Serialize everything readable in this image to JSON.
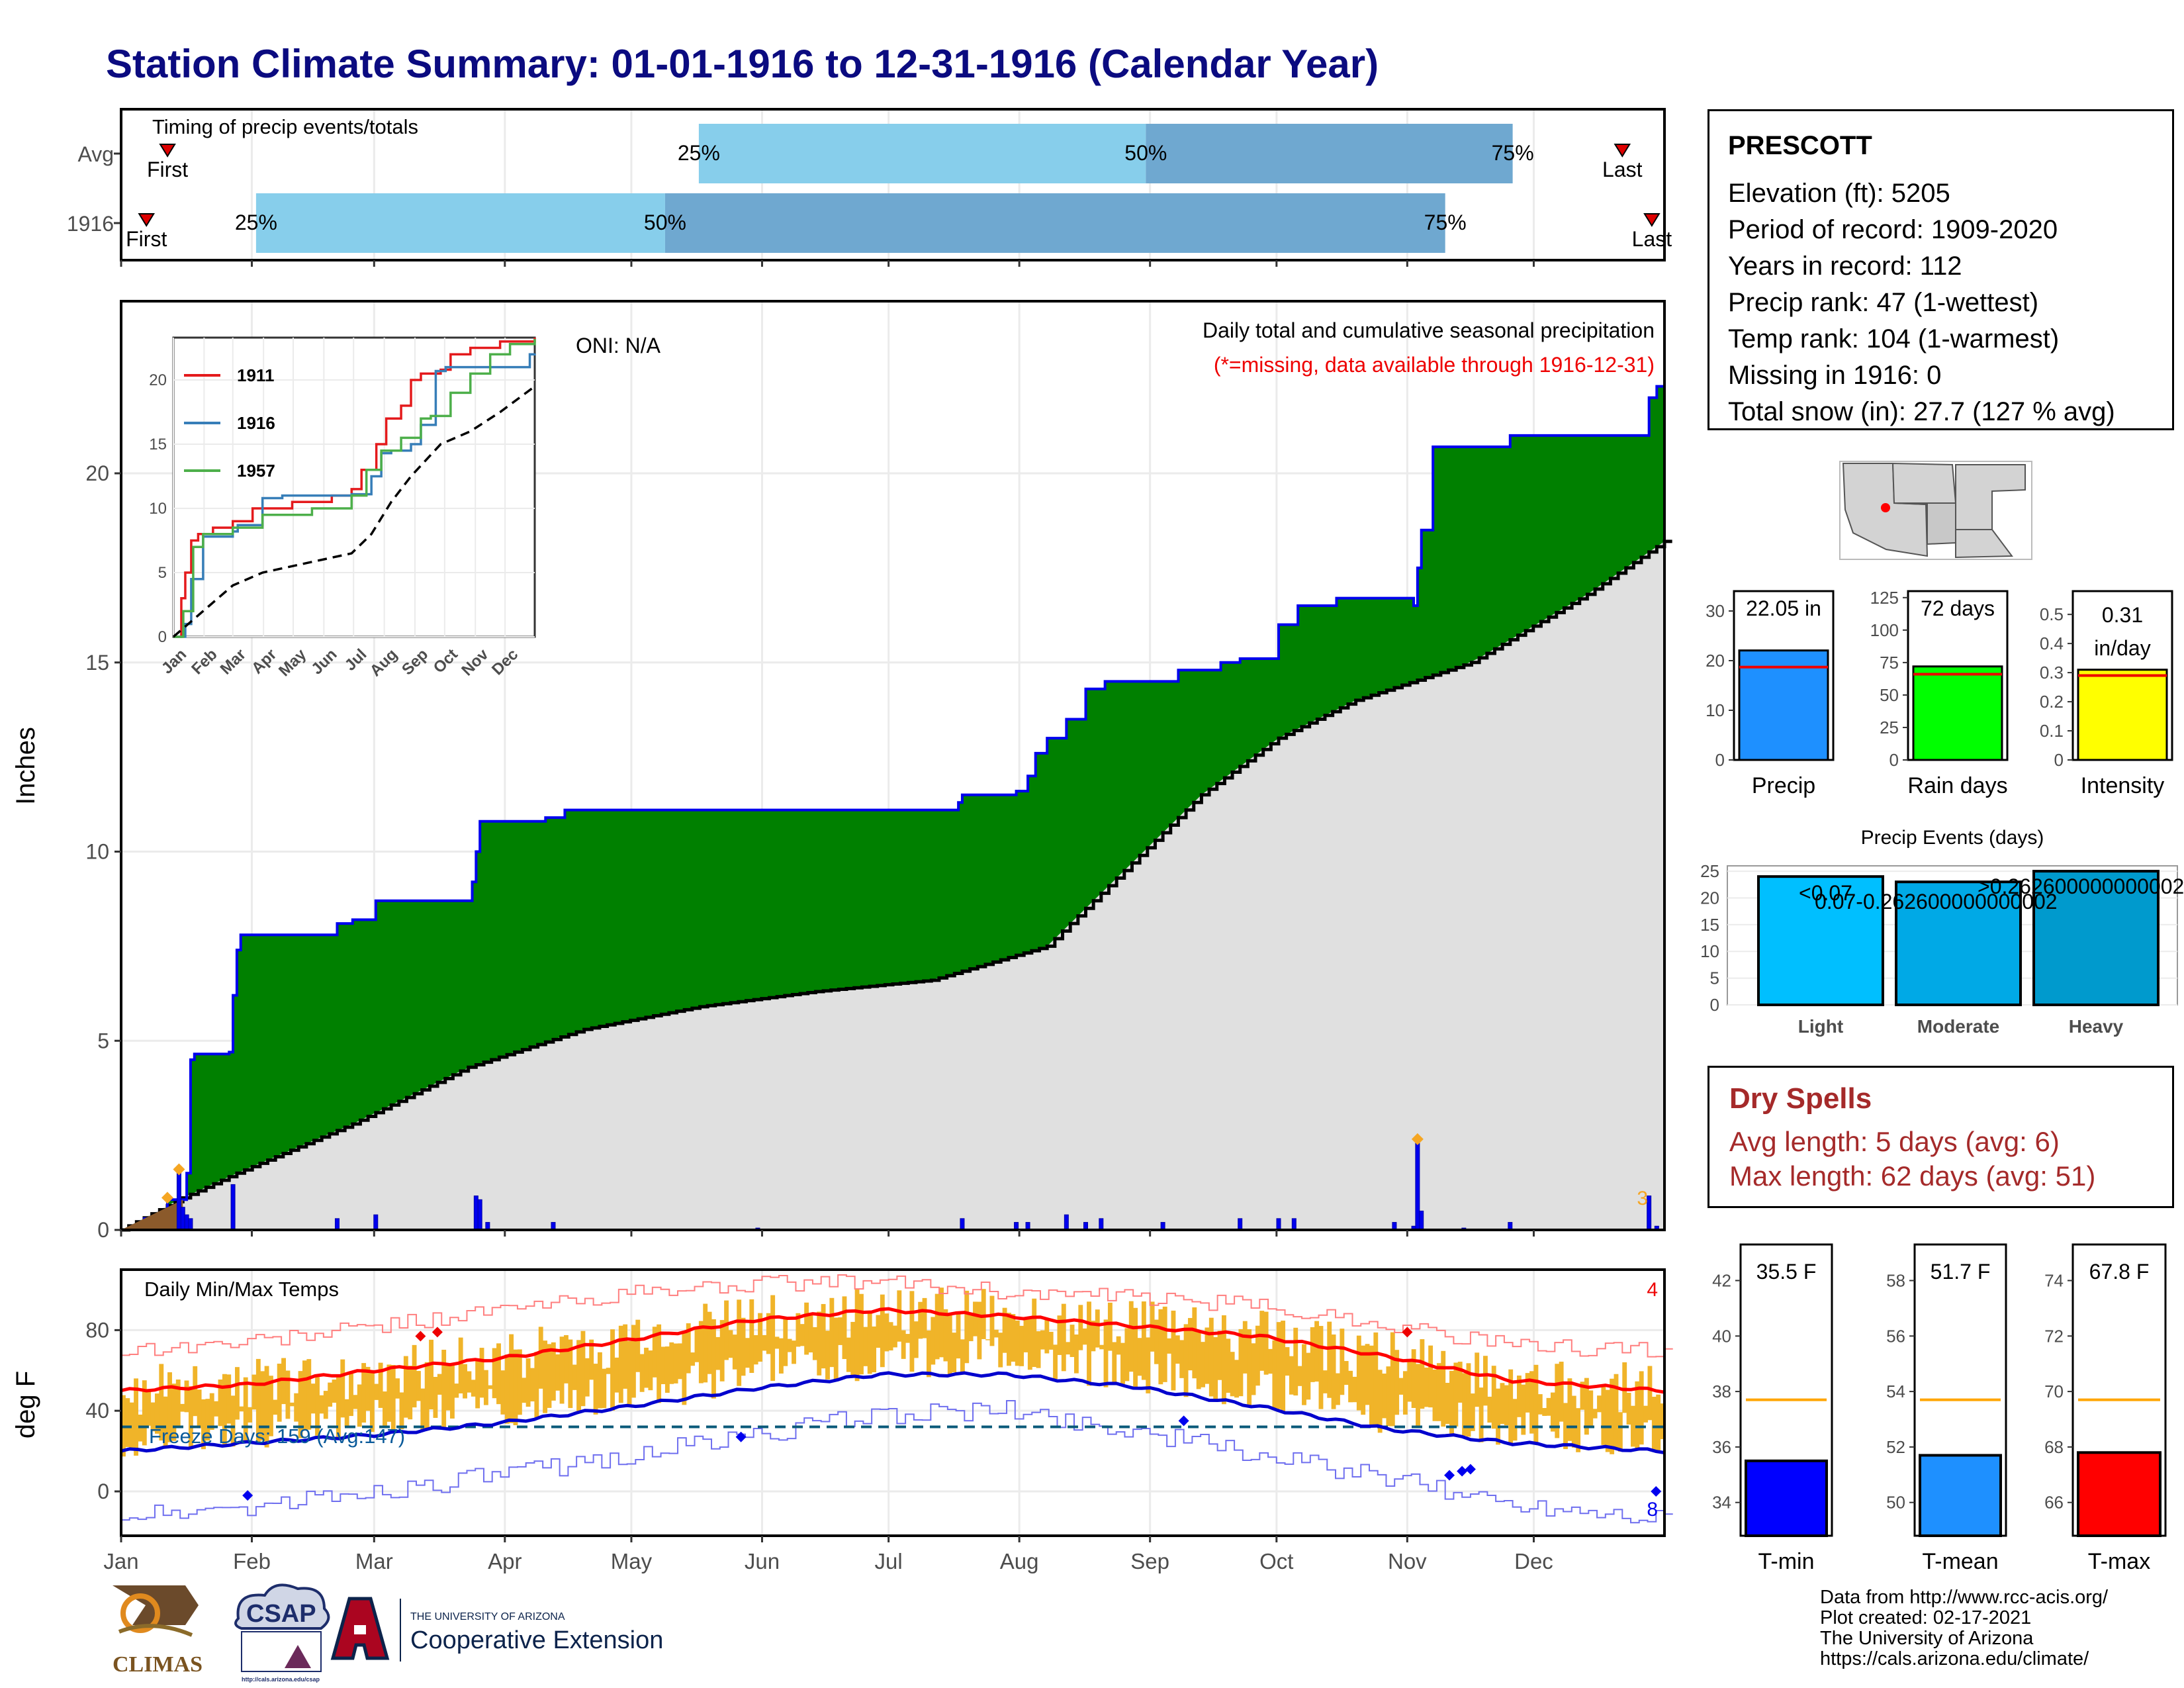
{
  "title": "Station Climate Summary: 01-01-1916 to 12-31-1916 (Calendar Year)",
  "station": {
    "name": "PRESCOTT",
    "rows": [
      "Elevation (ft): 5205",
      "Period of record: 1909-2020",
      "Years in record: 112",
      "Precip rank: 47 (1-wettest)",
      "Temp rank: 104 (1-warmest)",
      "Missing in 1916: 0",
      "Total snow (in): 27.7 (127 % avg)"
    ]
  },
  "dry_spells": {
    "title": "Dry Spells",
    "avg_length": "Avg length: 5 days (avg: 6)",
    "max_length": "Max length: 62 days (avg: 51)"
  },
  "credits": [
    "Data from http://www.rcc-acis.org/",
    "Plot created: 02-17-2021",
    "The University of Arizona",
    "https://cals.arizona.edu/climate/"
  ],
  "logos": {
    "climas": "CLIMAS",
    "csap": "CSAP",
    "csap_url": "http://cals.arizona.edu/csap",
    "uofa_small": "THE UNIVERSITY OF ARIZONA",
    "uofa_big": "Cooperative Extension"
  },
  "colors": {
    "title": "#0b0b80",
    "precip_fill": "#008000",
    "precip_line": "#0000ee",
    "normal_fill": "#e0e0e0",
    "tmax": "#ff0000",
    "tmin": "#0000cd",
    "temp_bar": "#f0b429",
    "q_light": "#87ceeb",
    "q_dark": "#6fa8d0"
  },
  "chart_data": [
    {
      "type": "bar",
      "name": "timing",
      "title": "Timing of precip events/totals",
      "x_domain_days": [
        0,
        366
      ],
      "rows": [
        {
          "label": "Avg",
          "first": 11,
          "q25": 137,
          "q50": 243,
          "q75": 330,
          "last": 356
        },
        {
          "label": "1916",
          "first": 6,
          "q25": 32,
          "q50": 129,
          "q75": 314,
          "last": 363
        }
      ],
      "marker_labels": {
        "first": "First",
        "last": "Last",
        "q25": "25%",
        "q50": "50%",
        "q75": "75%"
      }
    },
    {
      "type": "area",
      "name": "cumulative_precip",
      "title": "Daily total and cumulative seasonal precipitation",
      "subtitle": "(*=missing, data available through 1916-12-31)",
      "oni": "ONI: N/A",
      "ylabel": "Inches",
      "ylim": [
        0,
        24
      ],
      "yticks": [
        0,
        5,
        10,
        15,
        20
      ],
      "month_labels": [
        "Jan",
        "Feb",
        "Mar",
        "Apr",
        "May",
        "Jun",
        "Jul",
        "Aug",
        "Sep",
        "Oct",
        "Nov",
        "Dec"
      ],
      "corner_label": "3",
      "cumulative_1916": [
        [
          0,
          0
        ],
        [
          6,
          0.3
        ],
        [
          12,
          0.8
        ],
        [
          17,
          1.5
        ],
        [
          18,
          4.5
        ],
        [
          19,
          4.65
        ],
        [
          28,
          4.7
        ],
        [
          29,
          6.2
        ],
        [
          30,
          7.4
        ],
        [
          31,
          7.8
        ],
        [
          55,
          7.8
        ],
        [
          56,
          8.1
        ],
        [
          60,
          8.2
        ],
        [
          66,
          8.7
        ],
        [
          90,
          8.7
        ],
        [
          91,
          9.2
        ],
        [
          92,
          10.0
        ],
        [
          93,
          10.8
        ],
        [
          110,
          10.9
        ],
        [
          115,
          11.1
        ],
        [
          165,
          11.1
        ],
        [
          215,
          11.1
        ],
        [
          217,
          11.3
        ],
        [
          218,
          11.5
        ],
        [
          232,
          11.6
        ],
        [
          235,
          12.0
        ],
        [
          237,
          12.6
        ],
        [
          240,
          13.0
        ],
        [
          245,
          13.5
        ],
        [
          250,
          14.3
        ],
        [
          255,
          14.5
        ],
        [
          270,
          14.5
        ],
        [
          274,
          14.8
        ],
        [
          285,
          15.0
        ],
        [
          290,
          15.1
        ],
        [
          300,
          16.0
        ],
        [
          305,
          16.5
        ],
        [
          315,
          16.7
        ],
        [
          335,
          16.5
        ],
        [
          336,
          17.5
        ],
        [
          337,
          18.5
        ],
        [
          340,
          20.7
        ],
        [
          360,
          21.0
        ],
        [
          395,
          21.0
        ],
        [
          396,
          22.0
        ],
        [
          398,
          22.3
        ],
        [
          400,
          22.05
        ]
      ],
      "normal": [
        [
          0,
          0
        ],
        [
          15,
          0.8
        ],
        [
          30,
          1.5
        ],
        [
          60,
          2.8
        ],
        [
          90,
          4.3
        ],
        [
          120,
          5.3
        ],
        [
          150,
          5.9
        ],
        [
          180,
          6.3
        ],
        [
          210,
          6.6
        ],
        [
          240,
          7.5
        ],
        [
          260,
          9.5
        ],
        [
          280,
          11.5
        ],
        [
          300,
          13.0
        ],
        [
          320,
          14.0
        ],
        [
          350,
          15.0
        ],
        [
          380,
          16.8
        ],
        [
          400,
          18.2
        ]
      ],
      "daily_bars": [
        [
          15,
          1.5
        ],
        [
          16,
          0.6
        ],
        [
          17,
          0.4
        ],
        [
          18,
          0.3
        ],
        [
          29,
          1.2
        ],
        [
          56,
          0.3
        ],
        [
          66,
          0.4
        ],
        [
          92,
          0.9
        ],
        [
          93,
          0.8
        ],
        [
          95,
          0.2
        ],
        [
          112,
          0.2
        ],
        [
          165,
          0.05
        ],
        [
          218,
          0.3
        ],
        [
          232,
          0.2
        ],
        [
          235,
          0.2
        ],
        [
          245,
          0.4
        ],
        [
          250,
          0.2
        ],
        [
          254,
          0.3
        ],
        [
          270,
          0.2
        ],
        [
          290,
          0.3
        ],
        [
          300,
          0.3
        ],
        [
          304,
          0.3
        ],
        [
          330,
          0.2
        ],
        [
          335,
          0.1
        ],
        [
          336,
          2.3
        ],
        [
          337,
          0.5
        ],
        [
          348,
          0.05
        ],
        [
          360,
          0.2
        ],
        [
          396,
          0.9
        ],
        [
          398,
          0.1
        ]
      ]
    },
    {
      "type": "line",
      "name": "inset_cumulative",
      "series": [
        {
          "name": "1911"
        },
        {
          "name": "1916"
        },
        {
          "name": "1957"
        }
      ],
      "ylim": [
        0,
        23
      ],
      "yticks": [
        0,
        5,
        10,
        15,
        20
      ],
      "month_labels": [
        "Jan",
        "Feb",
        "Mar",
        "Apr",
        "May",
        "Jun",
        "Jul",
        "Aug",
        "Sep",
        "Oct",
        "Nov",
        "Dec"
      ]
    },
    {
      "type": "bar",
      "name": "totals",
      "panels": [
        {
          "label": "Precip",
          "value_text": "22.05 in",
          "value": 22.05,
          "avg": 18.7,
          "ylim": [
            0,
            34
          ],
          "yticks": [
            0,
            10,
            20,
            30
          ],
          "color": "#1e90ff"
        },
        {
          "label": "Rain days",
          "value_text": "72 days",
          "value": 72,
          "avg": 66,
          "ylim": [
            0,
            130
          ],
          "yticks": [
            0,
            25,
            50,
            75,
            100,
            125
          ],
          "color": "#00ff00"
        },
        {
          "label": "Intensity",
          "value_text": "0.31",
          "value_text2": "in/day",
          "value": 0.31,
          "avg": 0.29,
          "ylim": [
            0,
            0.58
          ],
          "yticks": [
            0.0,
            0.1,
            0.2,
            0.3,
            0.4,
            0.5
          ],
          "color": "#ffff00"
        }
      ]
    },
    {
      "type": "bar",
      "name": "precip_events",
      "title": "Precip Events (days)",
      "categories": [
        "Light",
        "Moderate",
        "Heavy"
      ],
      "values": [
        24,
        23,
        25
      ],
      "bar_labels": [
        "<0.07",
        "0.07-0.262600000000002",
        ">0.262600000000002"
      ],
      "ylim": [
        0,
        26
      ],
      "yticks": [
        0,
        5,
        10,
        15,
        20,
        25
      ]
    },
    {
      "type": "line",
      "name": "daily_temps",
      "title": "Daily Min/Max Temps",
      "ylabel": "deg F",
      "ylim": [
        -22,
        110
      ],
      "yticks": [
        0,
        40,
        80
      ],
      "freeze_label": "Freeze Days: 159 (Avg:147)",
      "freeze_line": 32,
      "corner_top": "4",
      "corner_bottom": "8",
      "month_labels": [
        "Jan",
        "Feb",
        "Mar",
        "Apr",
        "May",
        "Jun",
        "Jul",
        "Aug",
        "Sep",
        "Oct",
        "Nov",
        "Dec"
      ],
      "avg_max": [
        [
          0,
          50
        ],
        [
          30,
          53
        ],
        [
          60,
          60
        ],
        [
          90,
          66
        ],
        [
          120,
          75
        ],
        [
          150,
          85
        ],
        [
          180,
          90
        ],
        [
          210,
          87
        ],
        [
          240,
          82
        ],
        [
          270,
          77
        ],
        [
          300,
          67
        ],
        [
          330,
          55
        ],
        [
          365,
          50
        ]
      ],
      "avg_min": [
        [
          0,
          20
        ],
        [
          30,
          24
        ],
        [
          60,
          28
        ],
        [
          90,
          34
        ],
        [
          120,
          42
        ],
        [
          150,
          51
        ],
        [
          180,
          58
        ],
        [
          210,
          58
        ],
        [
          240,
          52
        ],
        [
          270,
          42
        ],
        [
          300,
          31
        ],
        [
          330,
          24
        ],
        [
          365,
          20
        ]
      ],
      "rec_max": [
        [
          0,
          70
        ],
        [
          30,
          74
        ],
        [
          60,
          82
        ],
        [
          90,
          90
        ],
        [
          120,
          98
        ],
        [
          150,
          103
        ],
        [
          180,
          104
        ],
        [
          210,
          99
        ],
        [
          240,
          96
        ],
        [
          270,
          92
        ],
        [
          300,
          83
        ],
        [
          330,
          72
        ],
        [
          365,
          70
        ]
      ],
      "rec_min": [
        [
          0,
          -12
        ],
        [
          30,
          -8
        ],
        [
          60,
          0
        ],
        [
          90,
          8
        ],
        [
          120,
          18
        ],
        [
          150,
          28
        ],
        [
          180,
          38
        ],
        [
          210,
          40
        ],
        [
          240,
          30
        ],
        [
          270,
          18
        ],
        [
          300,
          6
        ],
        [
          330,
          -6
        ],
        [
          365,
          -12
        ]
      ]
    },
    {
      "type": "bar",
      "name": "temp_averages",
      "panels": [
        {
          "label": "T-min",
          "value_text": "35.5 F",
          "value": 35.5,
          "avg": 37.7,
          "ylim": [
            32.8,
            43.3
          ],
          "yticks": [
            34,
            36,
            38,
            40,
            42
          ],
          "color": "#0000ff"
        },
        {
          "label": "T-mean",
          "value_text": "51.7 F",
          "value": 51.7,
          "avg": 53.7,
          "ylim": [
            48.8,
            59.3
          ],
          "yticks": [
            50,
            52,
            54,
            56,
            58
          ],
          "color": "#1e90ff"
        },
        {
          "label": "T-max",
          "value_text": "67.8 F",
          "value": 67.8,
          "avg": 69.7,
          "ylim": [
            64.8,
            75.3
          ],
          "yticks": [
            66,
            68,
            70,
            72,
            74
          ],
          "color": "#ff0000"
        }
      ]
    }
  ]
}
